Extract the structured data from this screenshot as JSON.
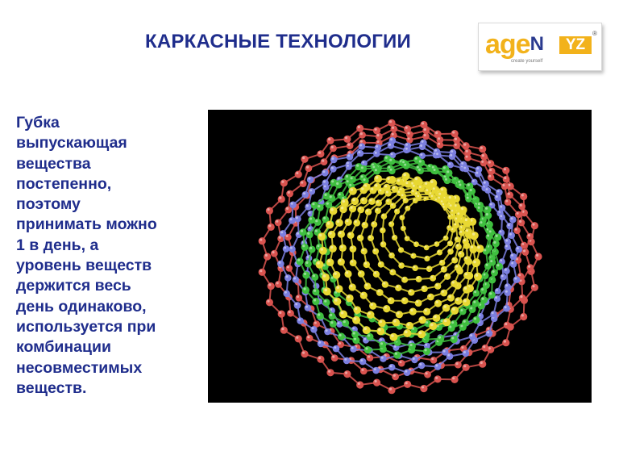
{
  "title": "КАРКАСНЫЕ ТЕХНОЛОГИИ",
  "logo": {
    "name_main": "age",
    "name_mid": "N",
    "name_box": "YZ",
    "tagline": "create yourself",
    "registered": "®"
  },
  "body_lines": [
    "Губка",
    "выпускающая",
    "вещества",
    "постепенно,",
    "поэтому",
    "принимать можно",
    "1 в день, а",
    "уровень веществ",
    "держится весь",
    "день одинаково,",
    "используется при",
    "комбинации",
    "несовместимых",
    "веществ."
  ],
  "image": {
    "subject": "nanotube-structure",
    "background": "#000000",
    "colors": {
      "outer": "#d9534f",
      "second": "#7b7fe0",
      "third": "#3fbf3f",
      "inner": "#e8d832"
    }
  },
  "colors": {
    "title": "#1f2d8c",
    "text": "#1f2d8c",
    "logo_yellow": "#f2b21b",
    "logo_blue": "#2a3a8f"
  }
}
